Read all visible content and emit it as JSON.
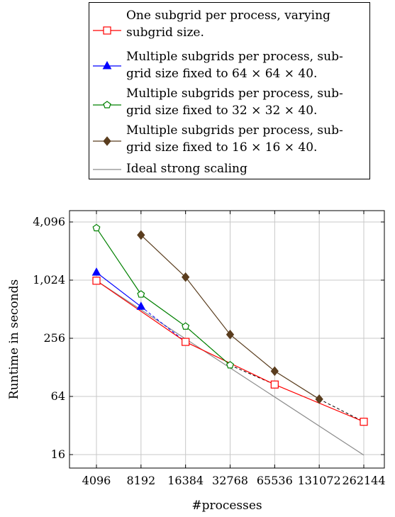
{
  "chart_data": {
    "type": "line",
    "title": "",
    "xlabel": "#processes",
    "ylabel": "Runtime in seconds",
    "x_scale": "log2",
    "y_scale": "log2",
    "x_ticks": [
      "4096",
      "8192",
      "16384",
      "32768",
      "65536",
      "131072",
      "262144"
    ],
    "y_ticks": [
      "16",
      "64",
      "256",
      "1,024",
      "4,096"
    ],
    "y_tick_values": [
      16,
      64,
      256,
      1024,
      4096
    ],
    "xlim": [
      4096,
      262144
    ],
    "ylim": [
      16,
      4096
    ],
    "grid": true,
    "legend_position": "above",
    "series": [
      {
        "name": "One subgrid per process, varying subgrid size.",
        "color": "#ff0000",
        "marker": "square",
        "dash": "solid",
        "x": [
          4096,
          16384,
          65536,
          262144
        ],
        "y": [
          1010,
          235,
          85,
          35
        ]
      },
      {
        "name": "Multiple subgrids per process, sub-grid size fixed to 64 × 64 × 40.",
        "color": "#0000ff",
        "marker": "triangle",
        "dash": "solid",
        "x": [
          4096,
          8192
        ],
        "y": [
          1230,
          545
        ]
      },
      {
        "name": "Multiple subgrids per process, sub-grid size fixed to 32 × 32 × 40.",
        "color": "#008000",
        "marker": "pentagon",
        "dash": "solid",
        "x": [
          4096,
          8192,
          16384,
          32768
        ],
        "y": [
          3550,
          730,
          340,
          135
        ]
      },
      {
        "name": "Multiple subgrids per process, sub-grid size fixed to 16 × 16 × 40.",
        "color": "#5a3d1e",
        "marker": "diamond",
        "dash": "solid",
        "x": [
          8192,
          16384,
          32768,
          65536,
          131072
        ],
        "y": [
          3000,
          1100,
          280,
          117,
          60
        ]
      },
      {
        "name": "Ideal strong scaling",
        "color": "#8c8c8c",
        "marker": "none",
        "dash": "solid",
        "x": [
          4096,
          262144
        ],
        "y": [
          1010,
          15.8
        ]
      }
    ],
    "connectors": [
      {
        "color": "#0000ff",
        "dash": "dashed",
        "x": [
          8192,
          16384
        ],
        "y": [
          545,
          235
        ]
      },
      {
        "color": "#008000",
        "dash": "dashed",
        "x": [
          16384,
          32768
        ],
        "y": [
          340,
          135
        ]
      },
      {
        "color": "#000000",
        "dash": "dashed",
        "x": [
          32768,
          65536
        ],
        "y": [
          135,
          85
        ]
      },
      {
        "color": "#000000",
        "dash": "dashed",
        "x": [
          131072,
          262144
        ],
        "y": [
          60,
          35
        ]
      }
    ]
  }
}
